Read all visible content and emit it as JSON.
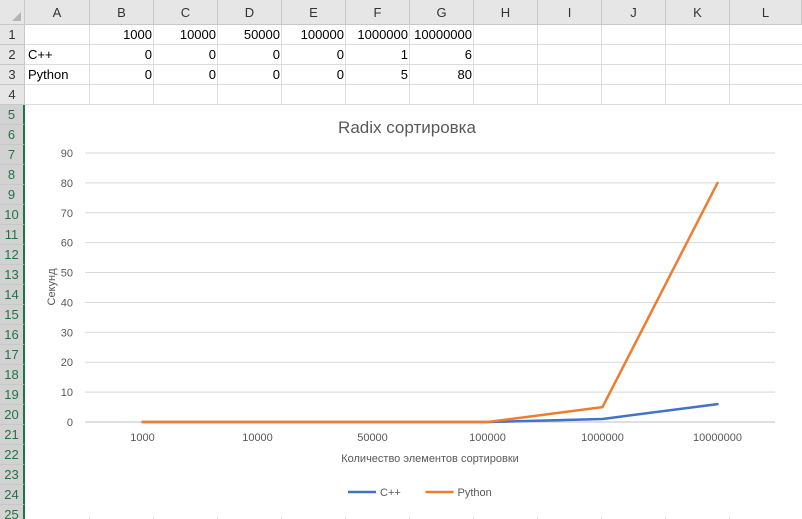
{
  "sheet": {
    "columns": [
      "A",
      "B",
      "C",
      "D",
      "E",
      "F",
      "G",
      "H",
      "I",
      "J",
      "K",
      "L"
    ],
    "rows": [
      "1",
      "2",
      "3",
      "4",
      "5",
      "6",
      "7",
      "8",
      "9",
      "10",
      "11",
      "12",
      "13",
      "14",
      "15",
      "16",
      "17",
      "18",
      "19",
      "20",
      "21",
      "22",
      "23",
      "24",
      "25"
    ],
    "cells": {
      "b1": "1000",
      "c1": "10000",
      "d1": "50000",
      "e1": "100000",
      "f1": "1000000",
      "g1": "10000000",
      "a2": "C++",
      "b2": "0",
      "c2": "0",
      "d2": "0",
      "e2": "0",
      "f2": "1",
      "g2": "6",
      "a3": "Python",
      "b3": "0",
      "c3": "0",
      "d3": "0",
      "e3": "0",
      "f3": "5",
      "g3": "80"
    }
  },
  "chart_data": {
    "type": "line",
    "title": "Radix сортировка",
    "xlabel": "Количество элементов сортировки",
    "ylabel": "Секунд",
    "categories": [
      "1000",
      "10000",
      "50000",
      "100000",
      "1000000",
      "10000000"
    ],
    "ylim": [
      0,
      90
    ],
    "yticks": [
      "0",
      "10",
      "20",
      "30",
      "40",
      "50",
      "60",
      "70",
      "80",
      "90"
    ],
    "grid": true,
    "legend": "bottom",
    "series": [
      {
        "name": "C++",
        "values": [
          0,
          0,
          0,
          0,
          1,
          6
        ],
        "color": "#4472c4"
      },
      {
        "name": "Python",
        "values": [
          0,
          0,
          0,
          0,
          5,
          80
        ],
        "color": "#ed7d31"
      }
    ]
  }
}
